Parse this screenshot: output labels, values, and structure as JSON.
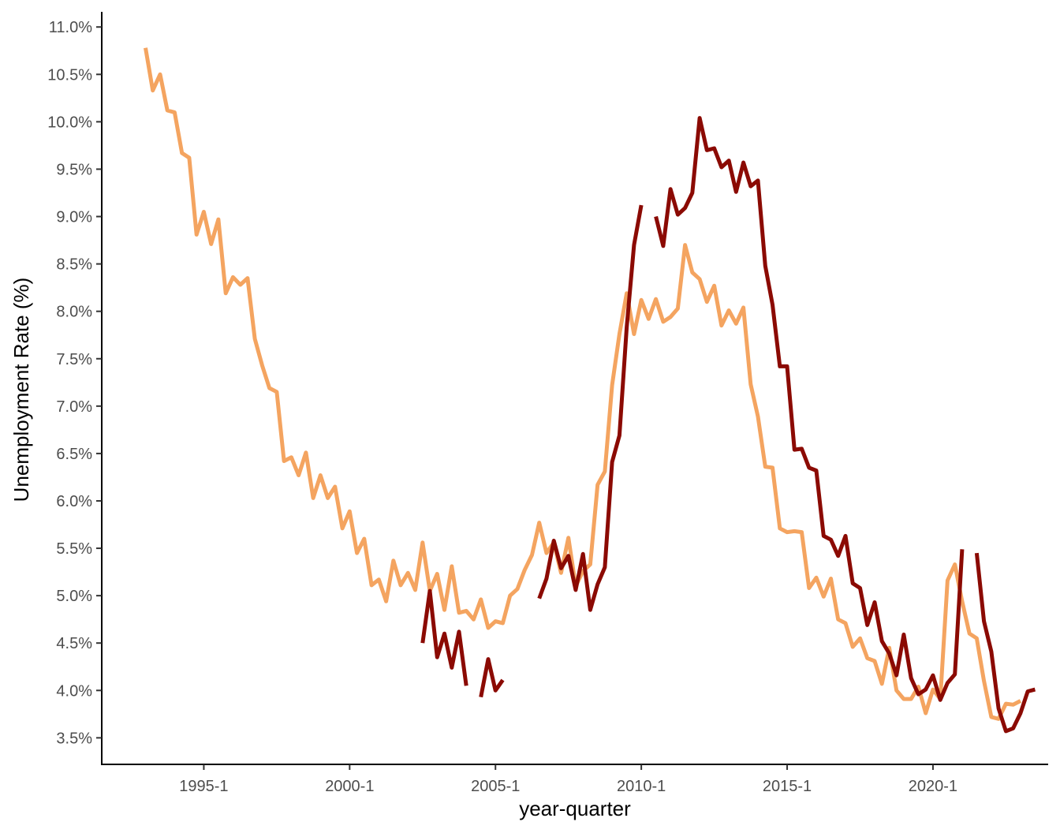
{
  "chart_data": {
    "type": "line",
    "xlabel": "year-quarter",
    "ylabel": "Unemployment Rate (%)",
    "x_ticks": [
      {
        "label": "1995-1",
        "value": 1995.0
      },
      {
        "label": "2000-1",
        "value": 2000.0
      },
      {
        "label": "2005-1",
        "value": 2005.0
      },
      {
        "label": "2010-1",
        "value": 2010.0
      },
      {
        "label": "2015-1",
        "value": 2015.0
      },
      {
        "label": "2020-1",
        "value": 2020.0
      }
    ],
    "y_ticks": [
      {
        "label": "3.5%",
        "value": 3.5
      },
      {
        "label": "4.0%",
        "value": 4.0
      },
      {
        "label": "4.5%",
        "value": 4.5
      },
      {
        "label": "5.0%",
        "value": 5.0
      },
      {
        "label": "5.5%",
        "value": 5.5
      },
      {
        "label": "6.0%",
        "value": 6.0
      },
      {
        "label": "6.5%",
        "value": 6.5
      },
      {
        "label": "7.0%",
        "value": 7.0
      },
      {
        "label": "7.5%",
        "value": 7.5
      },
      {
        "label": "8.0%",
        "value": 8.0
      },
      {
        "label": "8.5%",
        "value": 8.5
      },
      {
        "label": "9.0%",
        "value": 9.0
      },
      {
        "label": "9.5%",
        "value": 9.5
      },
      {
        "label": "10.0%",
        "value": 10.0
      },
      {
        "label": "10.5%",
        "value": 10.5
      },
      {
        "label": "11.0%",
        "value": 11.0
      }
    ],
    "xlim": [
      1991.5,
      2023.95
    ],
    "ylim": [
      3.22,
      11.16
    ],
    "grid": false,
    "legend": "none",
    "series": [
      {
        "color": "#F4A460",
        "start_quarter": "1993-1",
        "values": [
          10.78,
          10.33,
          10.5,
          10.12,
          10.1,
          9.67,
          9.62,
          8.81,
          9.05,
          8.71,
          8.97,
          8.19,
          8.36,
          8.28,
          8.35,
          7.71,
          7.43,
          7.19,
          7.15,
          6.42,
          6.46,
          6.27,
          6.51,
          6.03,
          6.27,
          6.03,
          6.15,
          5.71,
          5.89,
          5.45,
          5.6,
          5.11,
          5.17,
          4.94,
          5.37,
          5.11,
          5.24,
          5.06,
          5.56,
          5.05,
          5.23,
          4.85,
          5.31,
          4.82,
          4.84,
          4.75,
          4.96,
          4.66,
          4.73,
          4.71,
          5.0,
          5.07,
          5.27,
          5.43,
          5.77,
          5.45,
          5.56,
          5.24,
          5.61,
          5.1,
          5.26,
          5.33,
          6.17,
          6.31,
          7.22,
          7.76,
          8.19,
          7.76,
          8.12,
          7.92,
          8.13,
          7.89,
          7.94,
          8.03,
          8.7,
          8.41,
          8.34,
          8.1,
          8.27,
          7.85,
          8.01,
          7.87,
          8.04,
          7.23,
          6.89,
          6.36,
          6.35,
          5.71,
          5.67,
          5.68,
          5.67,
          5.08,
          5.19,
          4.99,
          5.18,
          4.75,
          4.71,
          4.46,
          4.55,
          4.34,
          4.31,
          4.07,
          4.45,
          4.0,
          3.91,
          3.91,
          4.04,
          3.76,
          4.01,
          3.91,
          5.16,
          5.33,
          4.94,
          4.6,
          4.55,
          4.1,
          3.72,
          3.7,
          3.86,
          3.85,
          3.89
        ]
      },
      {
        "color": "#8B0A03",
        "start_quarter": "2002-3",
        "values": [
          4.5,
          5.05,
          4.35,
          4.6,
          4.24,
          4.62,
          4.05,
          null,
          3.93,
          4.33,
          4.0,
          4.11,
          null,
          null,
          null,
          null,
          4.97,
          5.18,
          5.58,
          5.29,
          5.42,
          5.06,
          5.44,
          4.85,
          5.12,
          5.3,
          6.41,
          6.69,
          7.83,
          8.7,
          9.12,
          null,
          9.0,
          8.69,
          9.29,
          9.02,
          9.09,
          9.25,
          10.04,
          9.7,
          9.72,
          9.52,
          9.59,
          9.26,
          9.57,
          9.32,
          9.38,
          8.48,
          8.07,
          7.42,
          7.42,
          6.54,
          6.55,
          6.35,
          6.32,
          5.63,
          5.59,
          5.42,
          5.63,
          5.13,
          5.08,
          4.69,
          4.93,
          4.52,
          4.39,
          4.16,
          4.59,
          4.13,
          3.96,
          4.01,
          4.16,
          3.9,
          4.08,
          4.17,
          5.49,
          null,
          5.45,
          4.73,
          4.41,
          3.81,
          3.57,
          3.6,
          3.76,
          3.99,
          4.01
        ]
      }
    ]
  }
}
